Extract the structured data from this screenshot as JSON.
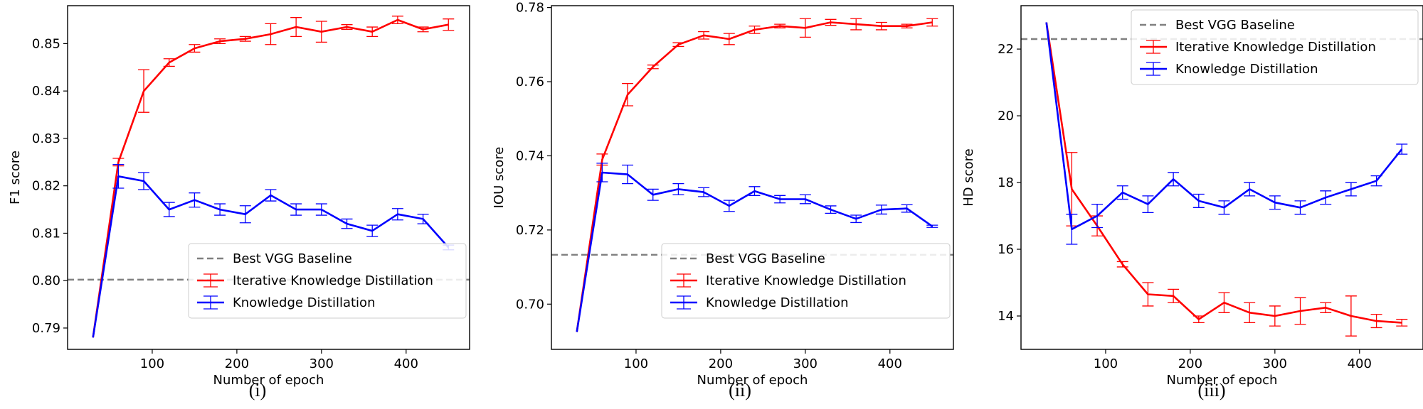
{
  "colors": {
    "red": "#ff0000",
    "blue": "#0000ff",
    "baseline": "#808080",
    "axis": "#000000"
  },
  "chart_data": [
    {
      "type": "line",
      "id": "f1",
      "caption": "(i)",
      "xlabel": "Number of epoch",
      "ylabel": "F1 score",
      "xlim": [
        0,
        475
      ],
      "ylim": [
        0.7855,
        0.858
      ],
      "xticks": [
        100,
        200,
        300,
        400
      ],
      "xtick_labels": [
        "100",
        "200",
        "300",
        "400"
      ],
      "yticks": [
        0.79,
        0.8,
        0.81,
        0.82,
        0.83,
        0.84,
        0.85
      ],
      "ytick_labels": [
        "0.79",
        "0.80",
        "0.81",
        "0.82",
        "0.83",
        "0.84",
        "0.85"
      ],
      "baseline": {
        "name": "Best VGG Baseline",
        "value": 0.8002
      },
      "legend_loc": "lower-right",
      "legend_labels": [
        "Best VGG Baseline",
        "Iterative Knowledge Distillation",
        "Knowledge Distillation"
      ],
      "x": [
        30,
        60,
        90,
        120,
        150,
        180,
        210,
        240,
        270,
        300,
        330,
        360,
        390,
        420,
        450
      ],
      "series": [
        {
          "name": "Iterative Knowledge Distillation",
          "color": "red",
          "values": [
            0.788,
            0.825,
            0.84,
            0.846,
            0.849,
            0.8505,
            0.851,
            0.852,
            0.8535,
            0.8525,
            0.8535,
            0.8525,
            0.855,
            0.853,
            0.854
          ],
          "errors": [
            0.0,
            0.0008,
            0.0045,
            0.0008,
            0.0008,
            0.0005,
            0.0005,
            0.0022,
            0.002,
            0.0022,
            0.0005,
            0.001,
            0.0008,
            0.0005,
            0.0012
          ]
        },
        {
          "name": "Knowledge Distillation",
          "color": "blue",
          "values": [
            0.788,
            0.822,
            0.821,
            0.815,
            0.817,
            0.815,
            0.814,
            0.818,
            0.815,
            0.815,
            0.812,
            0.8105,
            0.814,
            0.813,
            0.807
          ],
          "errors": [
            0.0,
            0.0025,
            0.0018,
            0.0015,
            0.0015,
            0.0012,
            0.0018,
            0.0012,
            0.0012,
            0.0012,
            0.001,
            0.0012,
            0.0012,
            0.001,
            0.0005
          ]
        }
      ]
    },
    {
      "type": "line",
      "id": "iou",
      "caption": "(ii)",
      "xlabel": "Number of epoch",
      "ylabel": "IOU score",
      "xlim": [
        0,
        475
      ],
      "ylim": [
        0.6878,
        0.7805
      ],
      "xticks": [
        100,
        200,
        300,
        400
      ],
      "xtick_labels": [
        "100",
        "200",
        "300",
        "400"
      ],
      "yticks": [
        0.7,
        0.72,
        0.74,
        0.76,
        0.78
      ],
      "ytick_labels": [
        "0.70",
        "0.72",
        "0.74",
        "0.76",
        "0.78"
      ],
      "baseline": {
        "name": "Best VGG Baseline",
        "value": 0.7133
      },
      "legend_loc": "lower-right",
      "legend_labels": [
        "Best VGG Baseline",
        "Iterative Knowledge Distillation",
        "Knowledge Distillation"
      ],
      "x": [
        30,
        60,
        90,
        120,
        150,
        180,
        210,
        240,
        270,
        300,
        330,
        360,
        390,
        420,
        450
      ],
      "series": [
        {
          "name": "Iterative Knowledge Distillation",
          "color": "red",
          "values": [
            0.6925,
            0.739,
            0.7565,
            0.764,
            0.77,
            0.7725,
            0.7715,
            0.774,
            0.775,
            0.7745,
            0.776,
            0.7755,
            0.775,
            0.775,
            0.776
          ],
          "errors": [
            0.0,
            0.0015,
            0.003,
            0.0005,
            0.0005,
            0.001,
            0.0015,
            0.001,
            0.0005,
            0.0025,
            0.0008,
            0.0015,
            0.001,
            0.0005,
            0.001
          ]
        },
        {
          "name": "Knowledge Distillation",
          "color": "blue",
          "values": [
            0.6925,
            0.7355,
            0.735,
            0.7295,
            0.731,
            0.7302,
            0.7265,
            0.7305,
            0.7283,
            0.7283,
            0.7255,
            0.723,
            0.7255,
            0.7258,
            0.721
          ],
          "errors": [
            0.0,
            0.0025,
            0.0025,
            0.0015,
            0.0015,
            0.0012,
            0.0015,
            0.0012,
            0.001,
            0.0012,
            0.001,
            0.001,
            0.0012,
            0.001,
            0.0003
          ]
        }
      ]
    },
    {
      "type": "line",
      "id": "hd",
      "caption": "(iii)",
      "xlabel": "Number of epoch",
      "ylabel": "HD score",
      "xlim": [
        0,
        475
      ],
      "ylim": [
        13.0,
        23.3
      ],
      "xticks": [
        100,
        200,
        300,
        400
      ],
      "xtick_labels": [
        "100",
        "200",
        "300",
        "400"
      ],
      "yticks": [
        14,
        16,
        18,
        20,
        22
      ],
      "ytick_labels": [
        "14",
        "16",
        "18",
        "20",
        "22"
      ],
      "baseline": {
        "name": "Best VGG Baseline",
        "value": 22.3
      },
      "legend_loc": "upper-right",
      "legend_labels": [
        "Best VGG Baseline",
        "Iterative Knowledge Distillation",
        "Knowledge Distillation"
      ],
      "x": [
        30,
        60,
        90,
        120,
        150,
        180,
        210,
        240,
        270,
        300,
        330,
        360,
        390,
        420,
        450
      ],
      "series": [
        {
          "name": "Iterative Knowledge Distillation",
          "color": "red",
          "values": [
            22.8,
            17.8,
            16.7,
            15.55,
            14.65,
            14.6,
            13.9,
            14.4,
            14.1,
            14.0,
            14.15,
            14.25,
            14.0,
            13.85,
            13.8
          ],
          "errors": [
            0.0,
            1.1,
            0.3,
            0.08,
            0.35,
            0.2,
            0.1,
            0.3,
            0.3,
            0.3,
            0.4,
            0.15,
            0.6,
            0.2,
            0.1
          ]
        },
        {
          "name": "Knowledge Distillation",
          "color": "blue",
          "values": [
            22.8,
            16.6,
            17.0,
            17.7,
            17.35,
            18.1,
            17.45,
            17.25,
            17.8,
            17.4,
            17.25,
            17.55,
            17.8,
            18.05,
            19.0
          ],
          "errors": [
            0.0,
            0.45,
            0.35,
            0.2,
            0.25,
            0.2,
            0.2,
            0.2,
            0.2,
            0.2,
            0.2,
            0.2,
            0.2,
            0.15,
            0.15
          ]
        }
      ]
    }
  ]
}
